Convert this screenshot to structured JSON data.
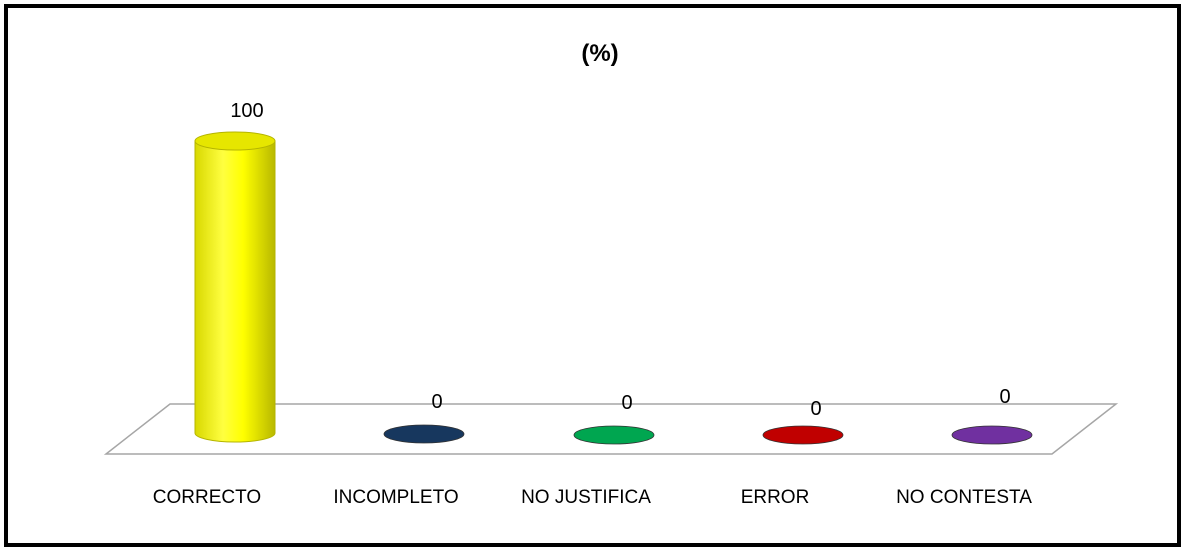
{
  "chart_data": {
    "type": "bar",
    "title": "(%)",
    "categories": [
      "CORRECTO",
      "INCOMPLETO",
      "NO JUSTIFICA",
      "ERROR",
      "NO CONTESTA"
    ],
    "values": [
      100,
      0,
      0,
      0,
      0
    ],
    "data_labels": [
      "100",
      "0",
      "0",
      "0",
      "0"
    ],
    "colors": [
      "#ffff00",
      "#17375e",
      "#00a650",
      "#c00000",
      "#7030a0"
    ],
    "ylim": [
      0,
      100
    ],
    "grid": false,
    "legend": "none",
    "style": "3d-cylinder"
  }
}
